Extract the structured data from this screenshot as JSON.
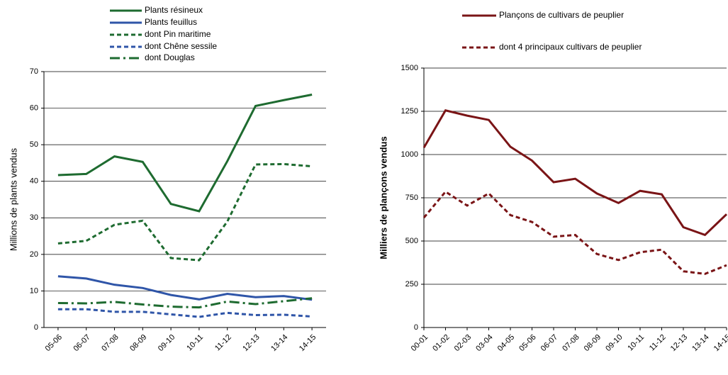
{
  "chart_data": [
    {
      "type": "line",
      "y_label": "Millions de plants vendus",
      "categories": [
        "05-06",
        "06-07",
        "07-08",
        "08-09",
        "09-10",
        "10-11",
        "11-12",
        "12-13",
        "13-14",
        "14-15"
      ],
      "ylim": [
        0,
        70
      ],
      "yticks": [
        0,
        10,
        20,
        30,
        40,
        50,
        60,
        70
      ],
      "grid": true,
      "series": [
        {
          "name": "Plants résineux",
          "color": "#1e6b30",
          "style": "solid",
          "values": [
            41.7,
            42,
            46.8,
            45.3,
            33.8,
            31.8,
            45.5,
            60.6,
            62.2,
            63.7
          ]
        },
        {
          "name": "Plants feuillus",
          "color": "#2f55a8",
          "style": "solid",
          "values": [
            14,
            13.4,
            11.7,
            10.8,
            8.9,
            7.7,
            9.2,
            8.3,
            8.6,
            7.6
          ]
        },
        {
          "name": "dont Pin maritime",
          "color": "#1e6b30",
          "style": "dashed",
          "values": [
            23,
            23.7,
            28.1,
            29.2,
            19,
            18.4,
            29,
            44.6,
            44.7,
            44.1
          ]
        },
        {
          "name": "dont Chêne sessile",
          "color": "#2f55a8",
          "style": "dashed",
          "values": [
            5,
            5,
            4.3,
            4.3,
            3.6,
            2.9,
            4,
            3.4,
            3.5,
            3
          ]
        },
        {
          "name": "dont Douglas",
          "color": "#1e6b30",
          "style": "dashdot",
          "values": [
            6.7,
            6.6,
            7,
            6.3,
            5.7,
            5.5,
            7.1,
            6.4,
            7.2,
            8
          ]
        }
      ]
    },
    {
      "type": "line",
      "y_label": "Milliers de plançons vendus",
      "categories": [
        "00-01",
        "01-02",
        "02-03",
        "03-04",
        "04-05",
        "05-06",
        "06-07",
        "07-08",
        "08-09",
        "09-10",
        "10-11",
        "11-12",
        "12-13",
        "13-14",
        "14-15"
      ],
      "ylim": [
        0,
        1500
      ],
      "yticks": [
        0,
        250,
        500,
        750,
        1000,
        1250,
        1500
      ],
      "grid": true,
      "series": [
        {
          "name": "Plançons de cultivars de peuplier",
          "color": "#7a1416",
          "style": "solid",
          "values": [
            1040,
            1255,
            1225,
            1200,
            1045,
            965,
            840,
            860,
            775,
            720,
            790,
            770,
            580,
            535,
            655
          ]
        },
        {
          "name": "dont 4 principaux cultivars de peuplier",
          "color": "#7a1416",
          "style": "dashed",
          "values": [
            635,
            785,
            705,
            775,
            650,
            610,
            525,
            535,
            425,
            390,
            435,
            450,
            325,
            310,
            360
          ]
        }
      ]
    }
  ]
}
